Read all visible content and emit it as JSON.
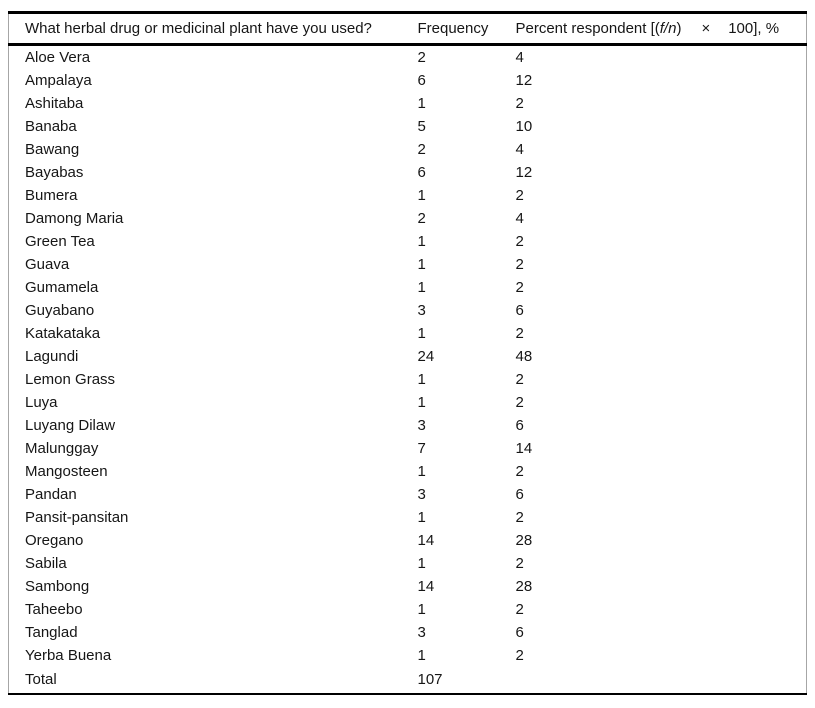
{
  "table": {
    "headers": {
      "question": "What herbal drug or medicinal plant have you used?",
      "frequency": "Frequency",
      "percent_prefix": "Percent respondent [(",
      "percent_fn": "f/n",
      "percent_close": ")",
      "percent_times": "×",
      "percent_suffix": "100], %"
    },
    "rows": [
      {
        "name": "Aloe Vera",
        "frequency": 2,
        "percent": 4
      },
      {
        "name": "Ampalaya",
        "frequency": 6,
        "percent": 12
      },
      {
        "name": "Ashitaba",
        "frequency": 1,
        "percent": 2
      },
      {
        "name": "Banaba",
        "frequency": 5,
        "percent": 10
      },
      {
        "name": "Bawang",
        "frequency": 2,
        "percent": 4
      },
      {
        "name": "Bayabas",
        "frequency": 6,
        "percent": 12
      },
      {
        "name": "Bumera",
        "frequency": 1,
        "percent": 2
      },
      {
        "name": "Damong Maria",
        "frequency": 2,
        "percent": 4
      },
      {
        "name": "Green Tea",
        "frequency": 1,
        "percent": 2
      },
      {
        "name": "Guava",
        "frequency": 1,
        "percent": 2
      },
      {
        "name": "Gumamela",
        "frequency": 1,
        "percent": 2
      },
      {
        "name": "Guyabano",
        "frequency": 3,
        "percent": 6
      },
      {
        "name": "Katakataka",
        "frequency": 1,
        "percent": 2
      },
      {
        "name": "Lagundi",
        "frequency": 24,
        "percent": 48
      },
      {
        "name": "Lemon Grass",
        "frequency": 1,
        "percent": 2
      },
      {
        "name": "Luya",
        "frequency": 1,
        "percent": 2
      },
      {
        "name": "Luyang Dilaw",
        "frequency": 3,
        "percent": 6
      },
      {
        "name": "Malunggay",
        "frequency": 7,
        "percent": 14
      },
      {
        "name": "Mangosteen",
        "frequency": 1,
        "percent": 2
      },
      {
        "name": "Pandan",
        "frequency": 3,
        "percent": 6
      },
      {
        "name": "Pansit-pansitan",
        "frequency": 1,
        "percent": 2
      },
      {
        "name": "Oregano",
        "frequency": 14,
        "percent": 28
      },
      {
        "name": "Sabila",
        "frequency": 1,
        "percent": 2
      },
      {
        "name": "Sambong",
        "frequency": 14,
        "percent": 28
      },
      {
        "name": "Taheebo",
        "frequency": 1,
        "percent": 2
      },
      {
        "name": "Tanglad",
        "frequency": 3,
        "percent": 6
      },
      {
        "name": "Yerba Buena",
        "frequency": 1,
        "percent": 2
      }
    ],
    "total": {
      "label": "Total",
      "frequency": 107,
      "percent": ""
    }
  },
  "chart_data": {
    "type": "table",
    "title": "What herbal drug or medicinal plant have you used?",
    "columns": [
      "What herbal drug or medicinal plant have you used?",
      "Frequency",
      "Percent respondent [(f/n) × 100], %"
    ],
    "categories": [
      "Aloe Vera",
      "Ampalaya",
      "Ashitaba",
      "Banaba",
      "Bawang",
      "Bayabas",
      "Bumera",
      "Damong Maria",
      "Green Tea",
      "Guava",
      "Gumamela",
      "Guyabano",
      "Katakataka",
      "Lagundi",
      "Lemon Grass",
      "Luya",
      "Luyang Dilaw",
      "Malunggay",
      "Mangosteen",
      "Pandan",
      "Pansit-pansitan",
      "Oregano",
      "Sabila",
      "Sambong",
      "Taheebo",
      "Tanglad",
      "Yerba Buena"
    ],
    "series": [
      {
        "name": "Frequency",
        "values": [
          2,
          6,
          1,
          5,
          2,
          6,
          1,
          2,
          1,
          1,
          1,
          3,
          1,
          24,
          1,
          1,
          3,
          7,
          1,
          3,
          1,
          14,
          1,
          14,
          1,
          3,
          1
        ]
      },
      {
        "name": "Percent respondent",
        "values": [
          4,
          12,
          2,
          10,
          4,
          12,
          2,
          4,
          2,
          2,
          2,
          6,
          2,
          48,
          2,
          2,
          6,
          14,
          2,
          6,
          2,
          28,
          2,
          28,
          2,
          6,
          2
        ]
      }
    ],
    "total_frequency": 107
  }
}
